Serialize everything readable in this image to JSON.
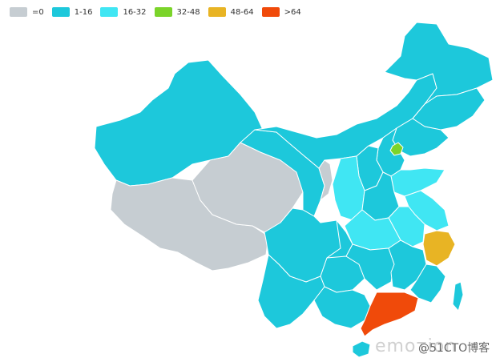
{
  "legend": [
    {
      "label": "=0",
      "color": "#c6cdd2"
    },
    {
      "label": "1-16",
      "color": "#1dc8db"
    },
    {
      "label": "16-32",
      "color": "#40e6f3"
    },
    {
      "label": "32-48",
      "color": "#7bd42a"
    },
    {
      "label": "48-64",
      "color": "#e8b424"
    },
    {
      "label": ">64",
      "color": "#f04a0a"
    }
  ],
  "watermark": {
    "text1": "emoτion",
    "text2": "@51CTO博客"
  }
}
